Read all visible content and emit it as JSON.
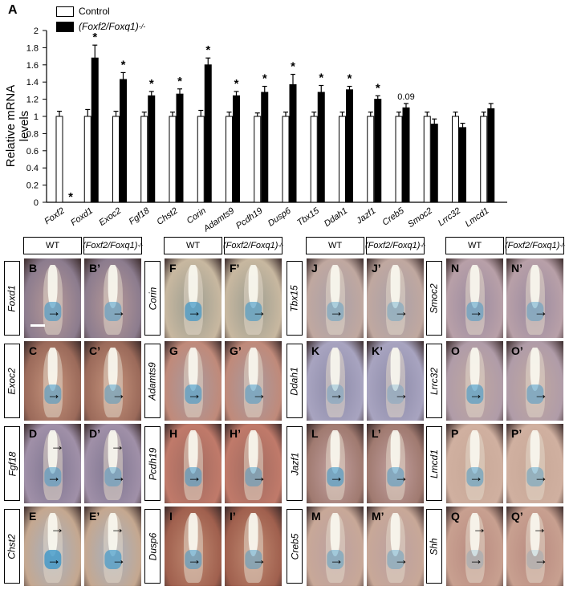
{
  "panel_label": "A",
  "chart_data": {
    "type": "bar",
    "title": "",
    "xlabel": "",
    "ylabel": "Relative mRNA levels",
    "ylim": [
      0,
      2
    ],
    "yticks": [
      "0",
      "0.2",
      "0.4",
      "0.6",
      "0.8",
      "1",
      "1.2",
      "1.4",
      "1.6",
      "1.8",
      "2"
    ],
    "categories": [
      "Foxf2",
      "Foxd1",
      "Exoc2",
      "Fgf18",
      "Chst2",
      "Corin",
      "Adamts9",
      "Pcdh19",
      "Dusp6",
      "Tbx15",
      "Ddah1",
      "Jazf1",
      "Creb5",
      "Smoc2",
      "Lrrc32",
      "Lmcd1"
    ],
    "series": [
      {
        "name": "Control",
        "color": "#ffffff",
        "values": [
          1,
          1,
          1,
          1,
          1,
          1,
          1,
          1,
          1,
          1,
          1,
          1,
          1,
          1,
          1,
          1
        ],
        "errors": [
          0.06,
          0.08,
          0.06,
          0.05,
          0.05,
          0.07,
          0.05,
          0.04,
          0.05,
          0.05,
          0.05,
          0.05,
          0.05,
          0.05,
          0.05,
          0.05
        ]
      },
      {
        "name": "(Foxf2/Foxq1)-/-",
        "color": "#000000",
        "values": [
          0,
          1.68,
          1.43,
          1.24,
          1.26,
          1.6,
          1.24,
          1.28,
          1.37,
          1.28,
          1.31,
          1.2,
          1.1,
          0.91,
          0.87,
          1.09
        ],
        "errors": [
          0,
          0.15,
          0.08,
          0.05,
          0.06,
          0.08,
          0.05,
          0.07,
          0.12,
          0.08,
          0.04,
          0.04,
          0.05,
          0.06,
          0.05,
          0.06
        ]
      }
    ],
    "annotations": [
      "*",
      "*",
      "*",
      "*",
      "*",
      "*",
      "*",
      "*",
      "*",
      "*",
      "*",
      "*",
      "0.09",
      "",
      "",
      ""
    ],
    "grid": false,
    "legend_position": "top-left"
  },
  "legend": {
    "control": "Control",
    "mutant_prefix": "(Foxf2/Foxq1)",
    "mutant_sup": "-/-"
  },
  "image_groups": [
    {
      "wt": "WT",
      "mut": "(Foxf2/Foxq1)",
      "sup": "-/-",
      "rows": [
        {
          "gene": "Foxd1",
          "l": "B",
          "r": "B’"
        },
        {
          "gene": "Exoc2",
          "l": "C",
          "r": "C’"
        },
        {
          "gene": "Fgf18",
          "l": "D",
          "r": "D’"
        },
        {
          "gene": "Chst2",
          "l": "E",
          "r": "E’"
        }
      ]
    },
    {
      "wt": "WT",
      "mut": "(Foxf2/Foxq1)",
      "sup": "-/-",
      "rows": [
        {
          "gene": "Corin",
          "l": "F",
          "r": "F’"
        },
        {
          "gene": "Adamts9",
          "l": "G",
          "r": "G’"
        },
        {
          "gene": "Pcdh19",
          "l": "H",
          "r": "H’"
        },
        {
          "gene": "Dusp6",
          "l": "I",
          "r": "I’"
        }
      ]
    },
    {
      "wt": "WT",
      "mut": "(Foxf2/Foxq1)",
      "sup": "-/-",
      "rows": [
        {
          "gene": "Tbx15",
          "l": "J",
          "r": "J’"
        },
        {
          "gene": "Ddah1",
          "l": "K",
          "r": "K’"
        },
        {
          "gene": "Jazf1",
          "l": "L",
          "r": "L’"
        },
        {
          "gene": "Creb5",
          "l": "M",
          "r": "M’"
        }
      ]
    },
    {
      "wt": "WT",
      "mut": "(Foxf2/Foxq1)",
      "sup": "-/-",
      "rows": [
        {
          "gene": "Smoc2",
          "l": "N",
          "r": "N’"
        },
        {
          "gene": "Lrrc32",
          "l": "O",
          "r": "O’"
        },
        {
          "gene": "Lmcd1",
          "l": "P",
          "r": "P’"
        },
        {
          "gene": "Shh",
          "l": "Q",
          "r": "Q’"
        }
      ]
    }
  ],
  "colors": {
    "bg_warm": "#c99a80",
    "bg_purple": "#9a8aa0",
    "stain_blue": "#4a9fc8",
    "tissue": "#d9d2c0"
  }
}
